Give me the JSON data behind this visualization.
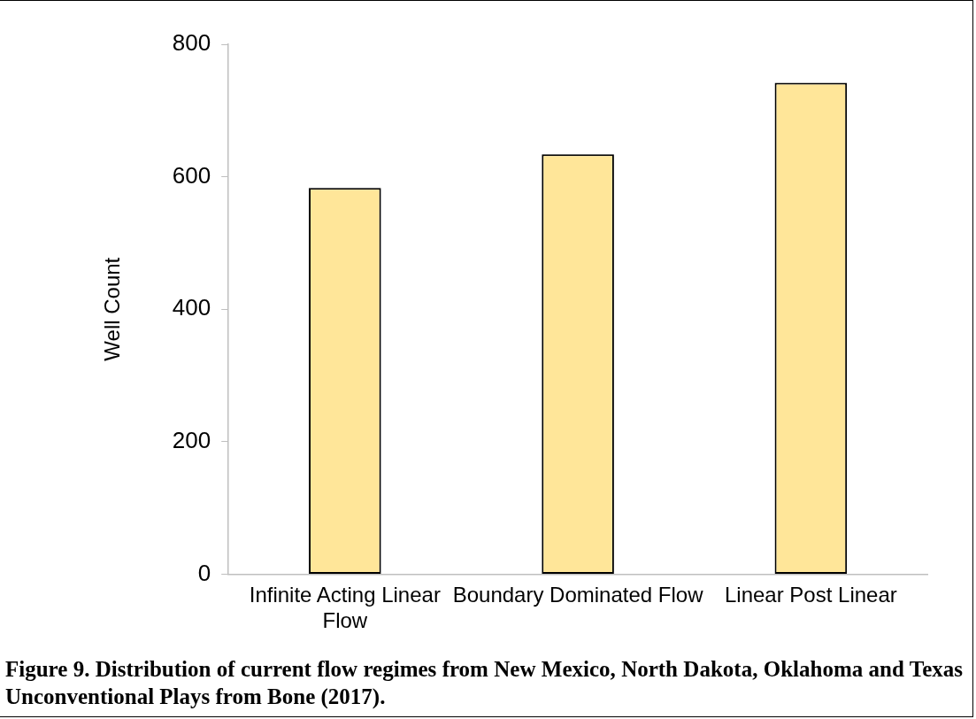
{
  "chart_data": {
    "type": "bar",
    "ylabel": "Well Count",
    "categories": [
      "Infinite Acting Linear Flow",
      "Boundary Dominated Flow",
      "Linear Post Linear"
    ],
    "values": [
      583,
      634,
      742
    ],
    "color": "#ffe699",
    "ylim": [
      0,
      800
    ],
    "yticks": [
      0,
      200,
      400,
      600,
      800
    ],
    "annotations": [
      "Figure 9.  Distribution of current flow regimes from  New Mexico, North Dakota, Oklahoma and Texas Unconventional Plays from Bone (2017)."
    ]
  }
}
